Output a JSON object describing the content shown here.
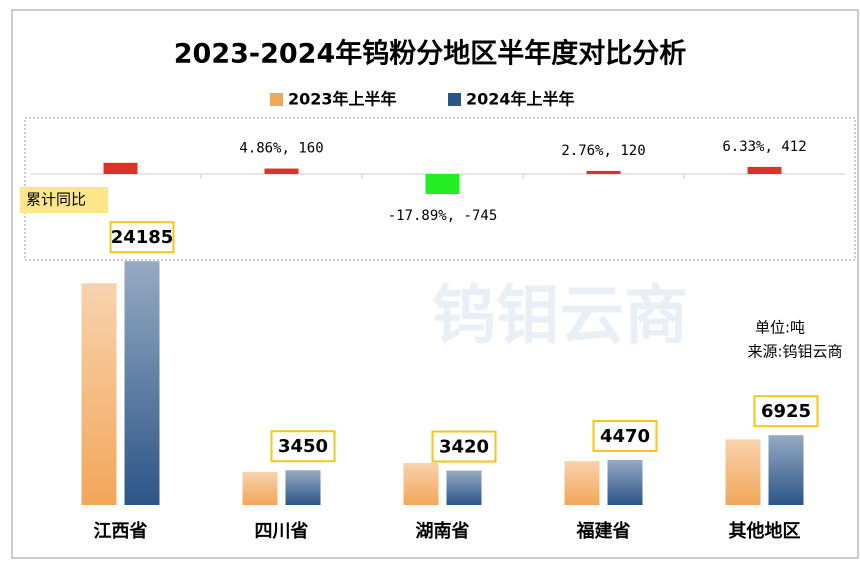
{
  "chart_data": {
    "type": "bar",
    "title": "2023-2024年钨粉分地区半年度对比分析",
    "categories": [
      "江西省",
      "四川省",
      "湖南省",
      "福建省",
      "其他地区"
    ],
    "series": [
      {
        "name": "2023年上半年",
        "color": "#f2a65a",
        "values": [
          22000,
          3290,
          4165,
          4350,
          6513
        ]
      },
      {
        "name": "2024年上半年",
        "color": "#2c5587",
        "values": [
          24185,
          3450,
          3420,
          4470,
          6925
        ]
      }
    ],
    "ylim": [
      0,
      25000
    ],
    "change": {
      "label": "累计同比",
      "values": [
        10,
        4.86,
        -17.89,
        2.76,
        6.33
      ],
      "value_labels": [
        null,
        "4.86%, 160",
        "-17.89%, -745",
        "2.76%, 120",
        "6.33%, 412"
      ],
      "colors": {
        "up": "#e0302a",
        "down": "#22ee22"
      }
    },
    "y2lim": [
      -50,
      50
    ],
    "unit": "单位:吨",
    "source": "来源:钨钼云商",
    "watermark": "钨钼云商"
  }
}
